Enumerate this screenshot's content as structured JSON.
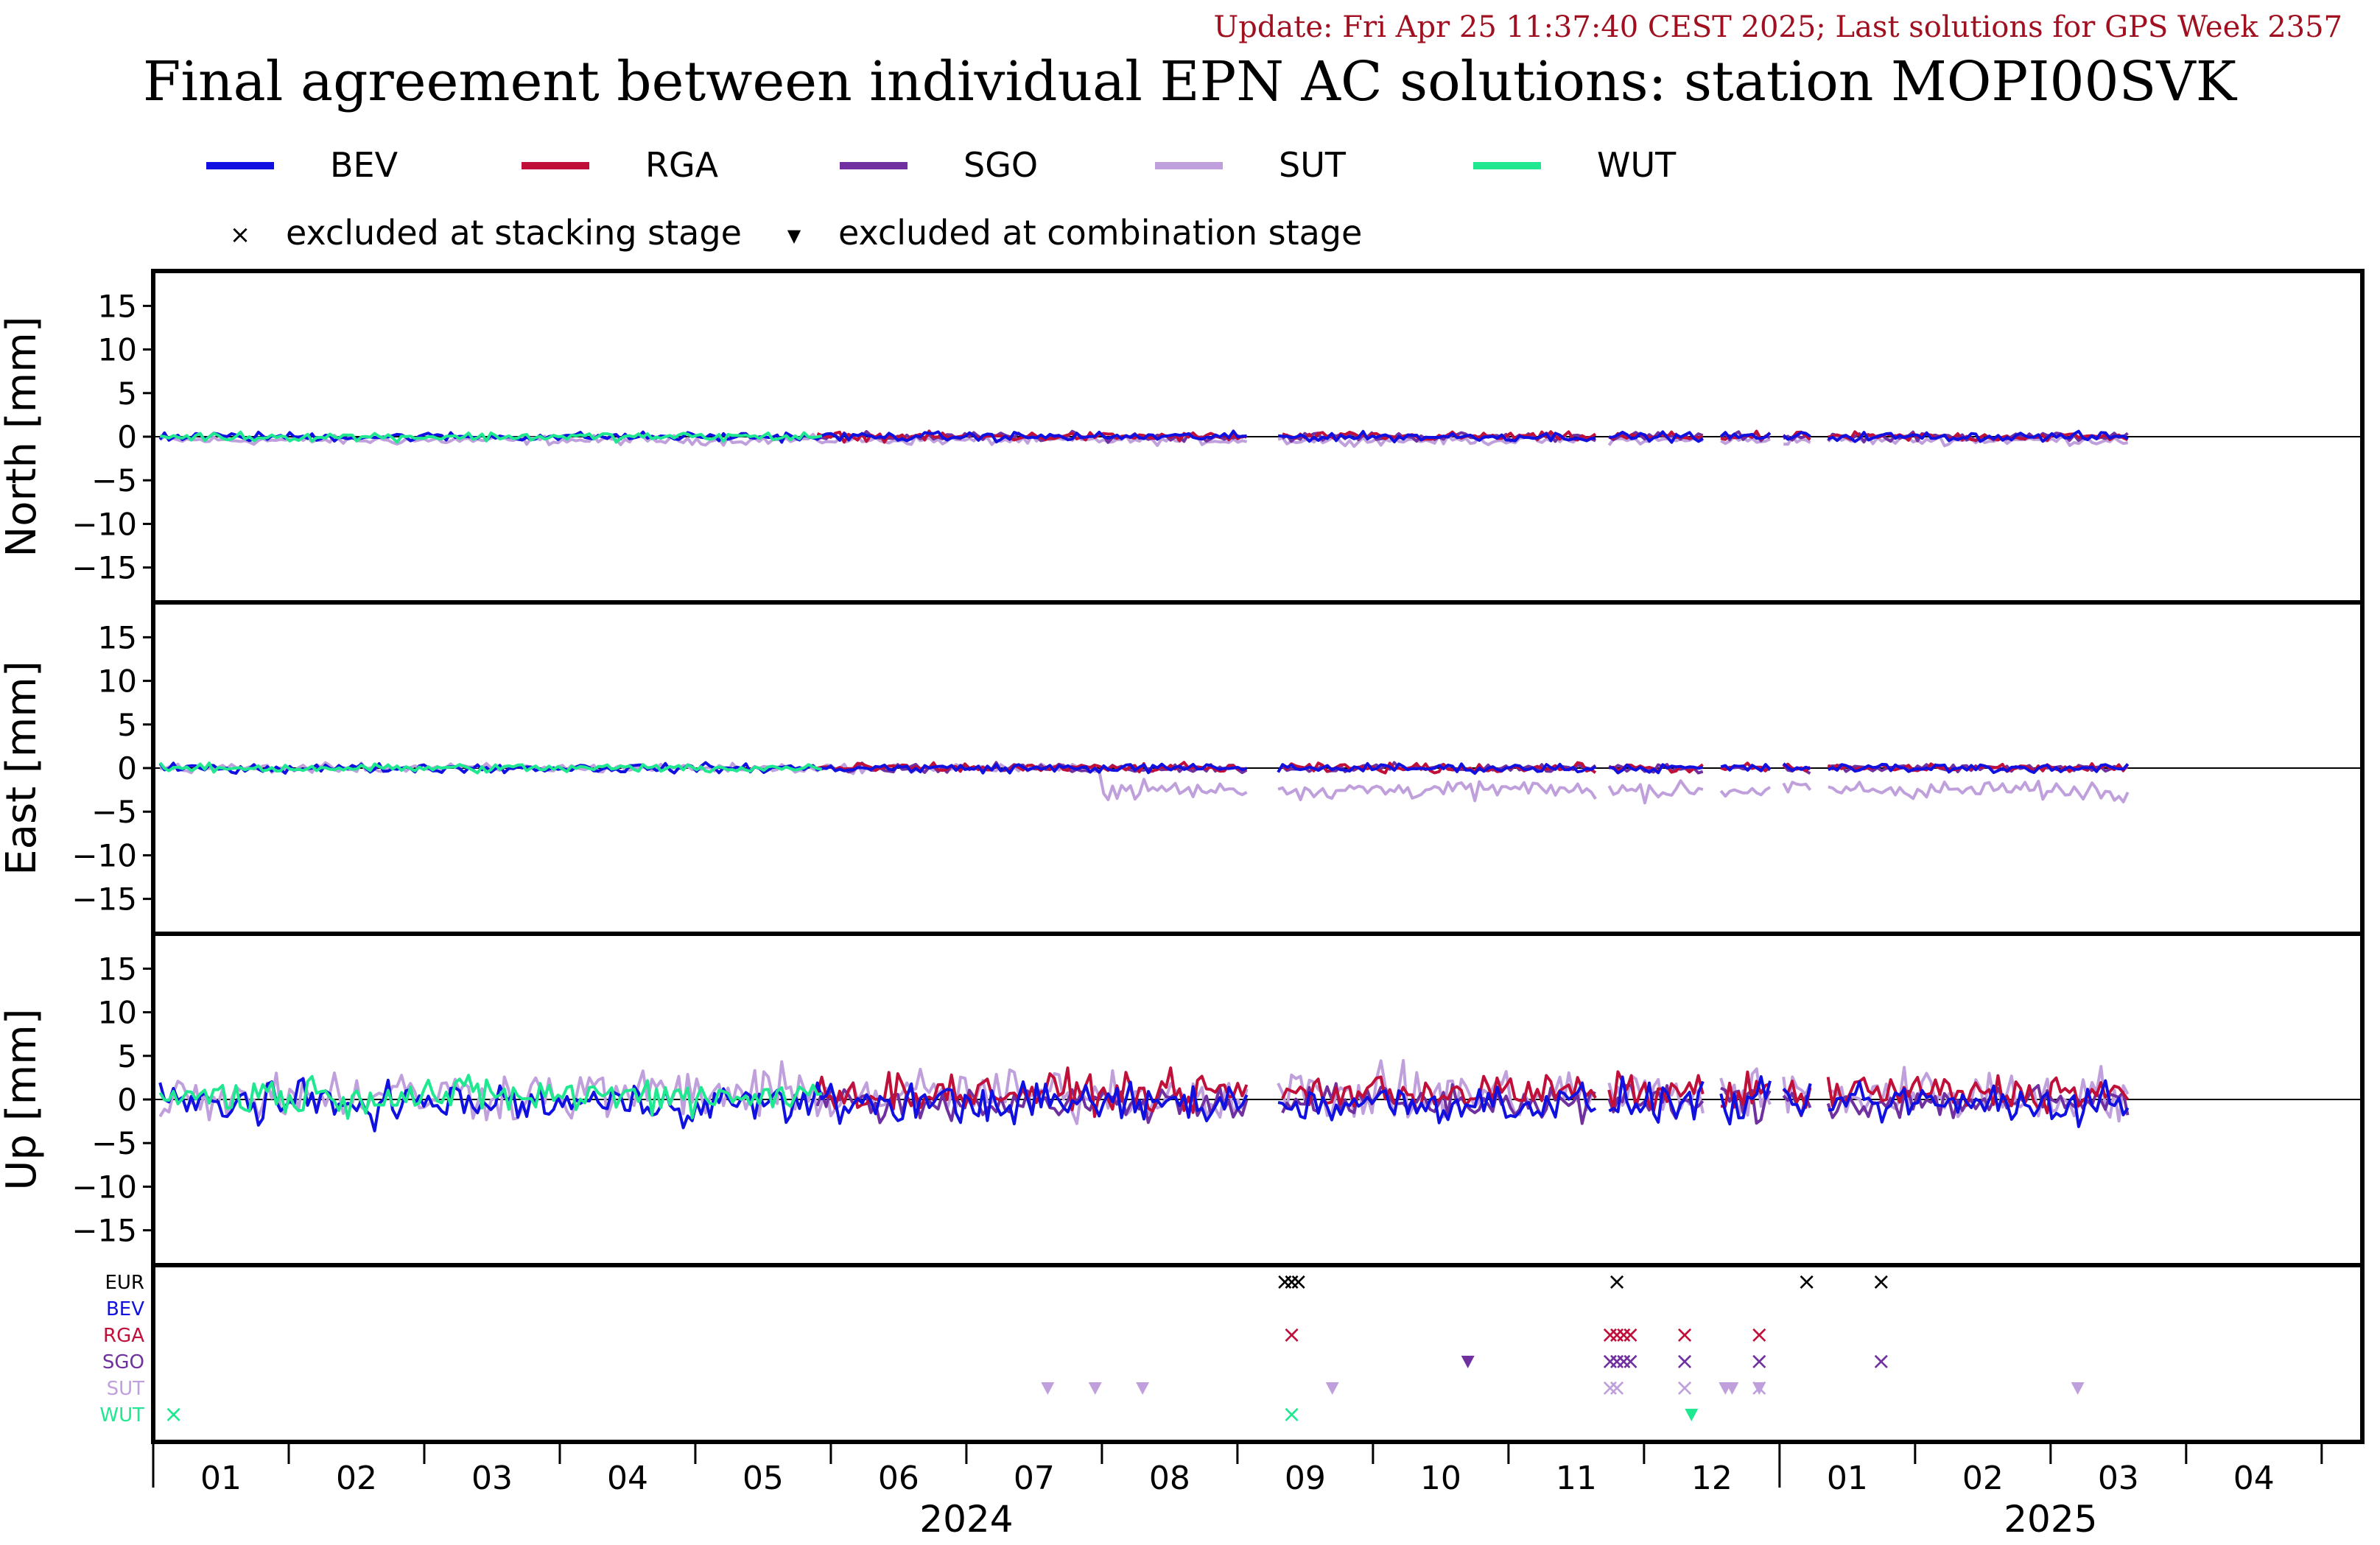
{
  "header": {
    "update_text": "Update: Fri Apr 25 11:37:40 CEST 2025; Last solutions for GPS Week 2357",
    "title": "Final agreement between individual EPN AC solutions: station MOPI00SVK"
  },
  "legend": {
    "series": [
      {
        "label": "BEV",
        "color": "#1010e0"
      },
      {
        "label": "RGA",
        "color": "#c0103a"
      },
      {
        "label": "SGO",
        "color": "#7030a0"
      },
      {
        "label": "SUT",
        "color": "#c0a0dc"
      },
      {
        "label": "WUT",
        "color": "#20e890"
      }
    ],
    "markers": [
      {
        "symbol": "×",
        "label": "excluded at stacking stage"
      },
      {
        "symbol": "▼",
        "label": "excluded at combination stage"
      }
    ]
  },
  "panel_labels": {
    "north": "North [mm]",
    "east": "East [mm]",
    "up": "Up [mm]"
  },
  "exclusion_rows": [
    {
      "label": "EUR",
      "color": "#000000"
    },
    {
      "label": "BEV",
      "color": "#1010e0"
    },
    {
      "label": "RGA",
      "color": "#c0103a"
    },
    {
      "label": "SGO",
      "color": "#7030a0"
    },
    {
      "label": "SUT",
      "color": "#c0a0dc"
    },
    {
      "label": "WUT",
      "color": "#20e890"
    }
  ],
  "chart_data": {
    "type": "line",
    "x_range_months": [
      0,
      16.3
    ],
    "x_tick_labels": [
      "01",
      "02",
      "03",
      "04",
      "05",
      "06",
      "07",
      "08",
      "09",
      "10",
      "11",
      "12",
      "01",
      "02",
      "03",
      "04"
    ],
    "year_labels": [
      {
        "label": "2024",
        "month_pos": 6.0
      },
      {
        "label": "2025",
        "month_pos": 14.0
      }
    ],
    "ylim": [
      -19,
      19
    ],
    "y_ticks": [
      15,
      10,
      5,
      0,
      -5,
      -10,
      -15
    ],
    "grid": false,
    "legend_position": "top",
    "panels": [
      {
        "key": "north",
        "ylabel": "North [mm]",
        "amplitude": 0.6
      },
      {
        "key": "east",
        "ylabel": "East [mm]",
        "amplitude": 0.6
      },
      {
        "key": "up",
        "ylabel": "Up [mm]",
        "amplitude": 2.5
      }
    ],
    "series_notes": {
      "SUT_east_offset_from_aug_2024_mm": -2.5,
      "data_end_month": 14.6
    },
    "exclusions": [
      {
        "row": "EUR",
        "symbol": "×",
        "months": [
          8.35,
          8.4,
          8.45,
          10.8,
          12.2,
          12.75
        ]
      },
      {
        "row": "RGA",
        "symbol": "×",
        "months": [
          8.4,
          10.75,
          10.8,
          10.85,
          10.9,
          11.3,
          11.85
        ]
      },
      {
        "row": "SGO",
        "symbol": "×",
        "months": [
          10.75,
          10.8,
          10.85,
          10.9,
          11.3,
          11.85,
          12.75
        ]
      },
      {
        "row": "SGO",
        "symbol": "▼",
        "months": [
          9.7
        ]
      },
      {
        "row": "SUT",
        "symbol": "▼",
        "months": [
          6.6,
          6.95,
          7.3,
          8.7,
          11.6,
          11.65,
          11.85,
          14.2
        ]
      },
      {
        "row": "SUT",
        "symbol": "×",
        "months": [
          10.75,
          10.8,
          11.3,
          11.85
        ]
      },
      {
        "row": "WUT",
        "symbol": "×",
        "months": [
          0.15,
          8.4
        ]
      },
      {
        "row": "WUT",
        "symbol": "▼",
        "months": [
          11.35
        ]
      }
    ]
  }
}
